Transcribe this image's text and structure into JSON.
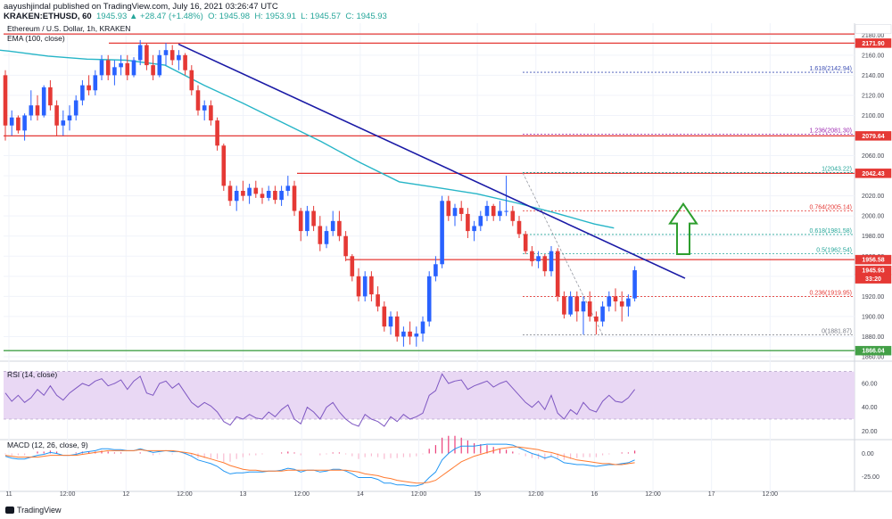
{
  "header": {
    "line1": "aayushjindal published on TradingView.com, July 16, 2021 03:26:47 UTC",
    "symbol": "KRAKEN:ETHUSD, 60",
    "change": "1945.93 ▲ +28.47 (+1.48%)",
    "o": "O: 1945.98",
    "h": "H: 1953.91",
    "l": "L: 1945.57",
    "c": "C: 1945.93"
  },
  "footer": {
    "brand": "TradingView"
  },
  "chart_data": {
    "type": "candlestick",
    "title": "Ethereum / U.S. Dollar, 1h, KRAKEN",
    "indicator_label": "EMA (100, close)",
    "price_axis": {
      "unit": "USD",
      "ylim": [
        1860,
        2190
      ],
      "ticks": [
        1860,
        1880,
        1900,
        1920,
        1940,
        1960,
        1980,
        2000,
        2020,
        2040,
        2060,
        2080,
        2100,
        2120,
        2140,
        2160,
        2180
      ]
    },
    "time_axis": {
      "ticks": [
        {
          "label": "11",
          "x": 0
        },
        {
          "label": "12:00",
          "x": 12
        },
        {
          "label": "12",
          "x": 24
        },
        {
          "label": "12:00",
          "x": 36
        },
        {
          "label": "13",
          "x": 48
        },
        {
          "label": "12:00",
          "x": 60
        },
        {
          "label": "14",
          "x": 72
        },
        {
          "label": "12:00",
          "x": 84
        },
        {
          "label": "15",
          "x": 96
        },
        {
          "label": "12:00",
          "x": 108
        },
        {
          "label": "16",
          "x": 120
        },
        {
          "label": "12:00",
          "x": 132
        },
        {
          "label": "17",
          "x": 144
        },
        {
          "label": "12:00",
          "x": 156
        }
      ]
    },
    "horizontal_levels": [
      {
        "price": 2181.0,
        "color": "#e53935"
      },
      {
        "price": 2171.9,
        "color": "#e53935"
      },
      {
        "price": 2079.64,
        "color": "#e53935"
      },
      {
        "price": 2042.43,
        "color": "#e53935"
      },
      {
        "price": 1956.58,
        "color": "#e53935"
      },
      {
        "price": 1866.04,
        "color": "#43a047"
      }
    ],
    "price_tags": [
      {
        "label": "USD",
        "price": 2186,
        "color": "#ffffff",
        "text_color": "#434651"
      },
      {
        "label": "2171.90",
        "price": 2171.9,
        "color": "#e53935"
      },
      {
        "label": "2079.64",
        "price": 2079.64,
        "color": "#e53935"
      },
      {
        "label": "2042.43",
        "price": 2042.43,
        "color": "#e53935"
      },
      {
        "label": "1956.58",
        "price": 1956.58,
        "color": "#e53935"
      },
      {
        "label": "1945.93",
        "price": 1945.93,
        "color": "#e53935"
      },
      {
        "label": "33:20",
        "price": 1937.5,
        "color": "#e53935"
      },
      {
        "label": "1866.04",
        "price": 1866.04,
        "color": "#43a047"
      }
    ],
    "fibonacci": [
      {
        "label": "1.618(2142.94)",
        "price": 2142.94,
        "color": "#3f51b5"
      },
      {
        "label": "1.236(2081.30)",
        "price": 2081.3,
        "color": "#9c27b0"
      },
      {
        "label": "1(2043.22)",
        "price": 2043.22,
        "color": "#26a69a"
      },
      {
        "label": "0.764(2005.14)",
        "price": 2005.14,
        "color": "#e53935"
      },
      {
        "label": "0.618(1981.58)",
        "price": 1981.58,
        "color": "#26a69a"
      },
      {
        "label": "0.5(1962.54)",
        "price": 1962.54,
        "color": "#26a69a"
      },
      {
        "label": "0.236(1919.95)",
        "price": 1919.95,
        "color": "#e53935"
      },
      {
        "label": "0(1881.87)",
        "price": 1881.87,
        "color": "#787b86"
      }
    ],
    "trendline": {
      "x1": 24,
      "y1": 2171,
      "x2": 128,
      "y2": 1948,
      "color": "#1a1aa6"
    },
    "ema100": [
      [
        -8,
        2168
      ],
      [
        0,
        2164
      ],
      [
        8,
        2159
      ],
      [
        16,
        2156
      ],
      [
        24,
        2155
      ],
      [
        32,
        2150
      ],
      [
        40,
        2130
      ],
      [
        48,
        2112
      ],
      [
        56,
        2093
      ],
      [
        64,
        2074
      ],
      [
        72,
        2053
      ],
      [
        80,
        2034
      ],
      [
        88,
        2028
      ],
      [
        96,
        2022
      ],
      [
        104,
        2013
      ],
      [
        112,
        2003
      ],
      [
        120,
        1992
      ],
      [
        124,
        1988
      ]
    ],
    "arrow": {
      "x": 134,
      "price_bottom": 1962,
      "price_top": 2012,
      "color": "#2e9e2e"
    },
    "candles": [
      [
        2140,
        2145,
        2075,
        2090
      ],
      [
        2090,
        2105,
        2080,
        2098
      ],
      [
        2098,
        2100,
        2082,
        2085
      ],
      [
        2085,
        2102,
        2075,
        2100
      ],
      [
        2100,
        2125,
        2095,
        2110
      ],
      [
        2110,
        2120,
        2095,
        2100
      ],
      [
        2100,
        2130,
        2098,
        2128
      ],
      [
        2128,
        2135,
        2105,
        2110
      ],
      [
        2110,
        2115,
        2080,
        2090
      ],
      [
        2090,
        2105,
        2080,
        2095
      ],
      [
        2095,
        2110,
        2085,
        2100
      ],
      [
        2100,
        2120,
        2095,
        2115
      ],
      [
        2115,
        2135,
        2110,
        2130
      ],
      [
        2130,
        2140,
        2120,
        2125
      ],
      [
        2125,
        2145,
        2120,
        2140
      ],
      [
        2140,
        2160,
        2135,
        2155
      ],
      [
        2155,
        2160,
        2135,
        2140
      ],
      [
        2140,
        2155,
        2130,
        2148
      ],
      [
        2148,
        2160,
        2140,
        2152
      ],
      [
        2152,
        2160,
        2135,
        2140
      ],
      [
        2140,
        2158,
        2138,
        2155
      ],
      [
        2155,
        2175,
        2150,
        2170
      ],
      [
        2170,
        2172,
        2145,
        2150
      ],
      [
        2150,
        2160,
        2135,
        2140
      ],
      [
        2140,
        2165,
        2138,
        2160
      ],
      [
        2160,
        2172,
        2150,
        2165
      ],
      [
        2165,
        2170,
        2150,
        2155
      ],
      [
        2155,
        2165,
        2145,
        2160
      ],
      [
        2160,
        2162,
        2140,
        2145
      ],
      [
        2145,
        2150,
        2120,
        2125
      ],
      [
        2125,
        2130,
        2100,
        2105
      ],
      [
        2105,
        2115,
        2095,
        2110
      ],
      [
        2110,
        2115,
        2090,
        2095
      ],
      [
        2095,
        2098,
        2065,
        2070
      ],
      [
        2070,
        2072,
        2025,
        2030
      ],
      [
        2030,
        2035,
        2010,
        2015
      ],
      [
        2015,
        2030,
        2005,
        2025
      ],
      [
        2025,
        2035,
        2015,
        2020
      ],
      [
        2020,
        2032,
        2012,
        2028
      ],
      [
        2028,
        2035,
        2018,
        2022
      ],
      [
        2022,
        2028,
        2012,
        2018
      ],
      [
        2018,
        2030,
        2015,
        2025
      ],
      [
        2025,
        2030,
        2012,
        2016
      ],
      [
        2016,
        2030,
        2010,
        2025
      ],
      [
        2025,
        2040,
        2020,
        2030
      ],
      [
        2030,
        2035,
        2000,
        2005
      ],
      [
        2005,
        2008,
        1975,
        1985
      ],
      [
        1985,
        2010,
        1980,
        2005
      ],
      [
        2005,
        2010,
        1985,
        1990
      ],
      [
        1990,
        2000,
        1965,
        1972
      ],
      [
        1972,
        1990,
        1968,
        1985
      ],
      [
        1985,
        2005,
        1980,
        1995
      ],
      [
        1995,
        2005,
        1975,
        1980
      ],
      [
        1980,
        1985,
        1955,
        1960
      ],
      [
        1960,
        1962,
        1935,
        1940
      ],
      [
        1940,
        1948,
        1915,
        1920
      ],
      [
        1920,
        1945,
        1915,
        1940
      ],
      [
        1940,
        1945,
        1915,
        1922
      ],
      [
        1922,
        1930,
        1905,
        1910
      ],
      [
        1910,
        1915,
        1885,
        1890
      ],
      [
        1890,
        1905,
        1882,
        1900
      ],
      [
        1900,
        1905,
        1875,
        1880
      ],
      [
        1880,
        1890,
        1870,
        1885
      ],
      [
        1885,
        1895,
        1872,
        1880
      ],
      [
        1880,
        1890,
        1870,
        1883
      ],
      [
        1883,
        1900,
        1875,
        1895
      ],
      [
        1895,
        1945,
        1890,
        1940
      ],
      [
        1940,
        1960,
        1935,
        1952
      ],
      [
        1952,
        2020,
        1948,
        2015
      ],
      [
        2015,
        2020,
        1995,
        2000
      ],
      [
        2000,
        2012,
        1990,
        2008
      ],
      [
        2008,
        2015,
        1995,
        2002
      ],
      [
        2002,
        2008,
        1978,
        1985
      ],
      [
        1985,
        1995,
        1975,
        1990
      ],
      [
        1990,
        2005,
        1985,
        2000
      ],
      [
        2000,
        2015,
        1995,
        2010
      ],
      [
        2010,
        2012,
        1995,
        2000
      ],
      [
        2000,
        2015,
        1995,
        2005
      ],
      [
        2005,
        2040,
        2000,
        2005
      ],
      [
        2005,
        2010,
        1990,
        1995
      ],
      [
        1995,
        2000,
        1978,
        1982
      ],
      [
        1982,
        1985,
        1962,
        1965
      ],
      [
        1965,
        1970,
        1950,
        1955
      ],
      [
        1955,
        1965,
        1948,
        1960
      ],
      [
        1960,
        1962,
        1940,
        1945
      ],
      [
        1945,
        1970,
        1940,
        1965
      ],
      [
        1965,
        1968,
        1915,
        1920
      ],
      [
        1920,
        1925,
        1898,
        1902
      ],
      [
        1902,
        1925,
        1900,
        1920
      ],
      [
        1920,
        1925,
        1895,
        1905
      ],
      [
        1905,
        1920,
        1882,
        1915
      ],
      [
        1915,
        1925,
        1895,
        1900
      ],
      [
        1900,
        1905,
        1882,
        1895
      ],
      [
        1895,
        1915,
        1890,
        1910
      ],
      [
        1910,
        1925,
        1905,
        1920
      ],
      [
        1920,
        1928,
        1905,
        1915
      ],
      [
        1915,
        1925,
        1895,
        1910
      ],
      [
        1910,
        1922,
        1900,
        1918
      ],
      [
        1918,
        1950,
        1915,
        1946
      ]
    ],
    "rsi": {
      "label": "RSI (14, close)",
      "ticks": [
        20,
        40,
        60
      ],
      "band": [
        30,
        70
      ],
      "values": [
        52,
        45,
        50,
        44,
        48,
        55,
        50,
        58,
        50,
        46,
        52,
        56,
        60,
        58,
        62,
        64,
        58,
        60,
        63,
        55,
        62,
        66,
        52,
        50,
        60,
        62,
        56,
        60,
        52,
        44,
        40,
        44,
        41,
        36,
        28,
        25,
        32,
        30,
        34,
        31,
        30,
        36,
        32,
        38,
        42,
        30,
        26,
        40,
        36,
        30,
        40,
        44,
        36,
        30,
        26,
        24,
        34,
        30,
        28,
        24,
        32,
        28,
        34,
        30,
        32,
        35,
        50,
        54,
        68,
        60,
        62,
        63,
        55,
        58,
        60,
        62,
        57,
        60,
        62,
        56,
        50,
        44,
        40,
        45,
        38,
        50,
        35,
        30,
        38,
        34,
        44,
        38,
        36,
        45,
        50,
        45,
        44,
        48,
        55
      ]
    },
    "macd": {
      "label": "MACD (12, 26, close, 9)",
      "ticks": [
        -25.0,
        0.0
      ],
      "macd_line": [
        -3,
        -5,
        -6,
        -6,
        -4,
        -2,
        -1,
        1,
        0,
        -2,
        -2,
        -1,
        1,
        2,
        3,
        5,
        5,
        4,
        4,
        3,
        3,
        5,
        3,
        1,
        2,
        3,
        2,
        2,
        0,
        -3,
        -7,
        -9,
        -11,
        -14,
        -19,
        -22,
        -21,
        -21,
        -20,
        -20,
        -20,
        -19,
        -19,
        -18,
        -16,
        -17,
        -20,
        -18,
        -18,
        -20,
        -19,
        -17,
        -17,
        -19,
        -22,
        -26,
        -26,
        -26,
        -28,
        -32,
        -32,
        -34,
        -34,
        -35,
        -35,
        -33,
        -26,
        -20,
        -7,
        0,
        5,
        8,
        8,
        8,
        9,
        10,
        10,
        10,
        10,
        9,
        6,
        3,
        0,
        -2,
        -5,
        -3,
        -6,
        -10,
        -11,
        -12,
        -12,
        -13,
        -14,
        -13,
        -12,
        -12,
        -11,
        -10,
        -7
      ],
      "signal_line": [
        -2,
        -3,
        -4,
        -4,
        -4,
        -4,
        -3,
        -2,
        -2,
        -2,
        -2,
        -2,
        -1,
        0,
        1,
        2,
        3,
        3,
        3,
        3,
        3,
        4,
        3,
        3,
        3,
        3,
        3,
        2,
        1,
        0,
        -2,
        -4,
        -6,
        -8,
        -10,
        -13,
        -15,
        -17,
        -18,
        -18,
        -19,
        -19,
        -19,
        -19,
        -18,
        -18,
        -18,
        -18,
        -18,
        -18,
        -18,
        -18,
        -18,
        -18,
        -19,
        -20,
        -22,
        -23,
        -24,
        -26,
        -27,
        -29,
        -30,
        -31,
        -32,
        -32,
        -31,
        -29,
        -24,
        -19,
        -14,
        -9,
        -6,
        -3,
        -1,
        1,
        3,
        5,
        6,
        7,
        7,
        6,
        5,
        4,
        2,
        1,
        -1,
        -3,
        -5,
        -7,
        -8,
        -9,
        -10,
        -11,
        -11,
        -12,
        -12,
        -11,
        -10
      ],
      "histogram": [
        -1,
        -2,
        -2,
        -2,
        0,
        2,
        2,
        3,
        2,
        0,
        0,
        1,
        2,
        2,
        2,
        3,
        2,
        1,
        1,
        0,
        0,
        1,
        0,
        -2,
        -1,
        0,
        -1,
        0,
        -1,
        -3,
        -5,
        -5,
        -5,
        -6,
        -9,
        -9,
        -6,
        -4,
        -2,
        -2,
        -1,
        0,
        0,
        1,
        2,
        1,
        -2,
        0,
        0,
        -2,
        -1,
        1,
        1,
        -1,
        -3,
        -6,
        -4,
        -3,
        -4,
        -6,
        -5,
        -5,
        -4,
        -4,
        -3,
        -1,
        5,
        9,
        17,
        19,
        19,
        17,
        14,
        11,
        10,
        9,
        7,
        5,
        4,
        2,
        -1,
        -3,
        -5,
        -6,
        -7,
        -4,
        -5,
        -7,
        -6,
        -5,
        -4,
        -4,
        -4,
        -2,
        -1,
        0,
        1,
        1,
        3
      ]
    }
  }
}
